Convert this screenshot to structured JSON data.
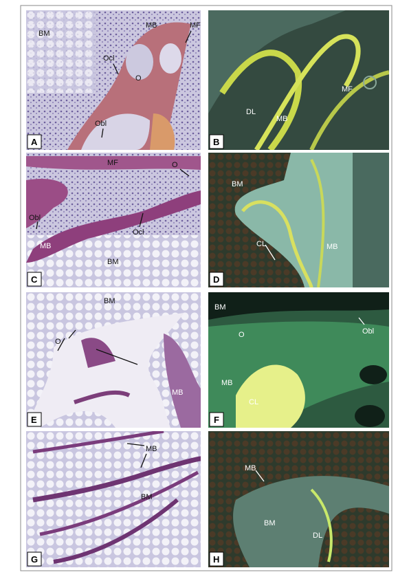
{
  "panels": [
    {
      "letter": "A",
      "labels": [
        "BM",
        "MB",
        "MF",
        "Ocl",
        "O",
        "Obl"
      ]
    },
    {
      "letter": "B",
      "labels": [
        "MF",
        "DL",
        "MB"
      ]
    },
    {
      "letter": "C",
      "labels": [
        "MF",
        "O",
        "Obl",
        "MB",
        "Ocl",
        "BM"
      ]
    },
    {
      "letter": "D",
      "labels": [
        "BM",
        "CL",
        "MB"
      ]
    },
    {
      "letter": "E",
      "labels": [
        "BM",
        "O",
        "MB"
      ]
    },
    {
      "letter": "F",
      "labels": [
        "BM",
        "Obl",
        "O",
        "MB",
        "CL"
      ]
    },
    {
      "letter": "G",
      "labels": [
        "MB",
        "BM"
      ]
    },
    {
      "letter": "H",
      "labels": [
        "MB",
        "BM",
        "DL"
      ]
    }
  ]
}
